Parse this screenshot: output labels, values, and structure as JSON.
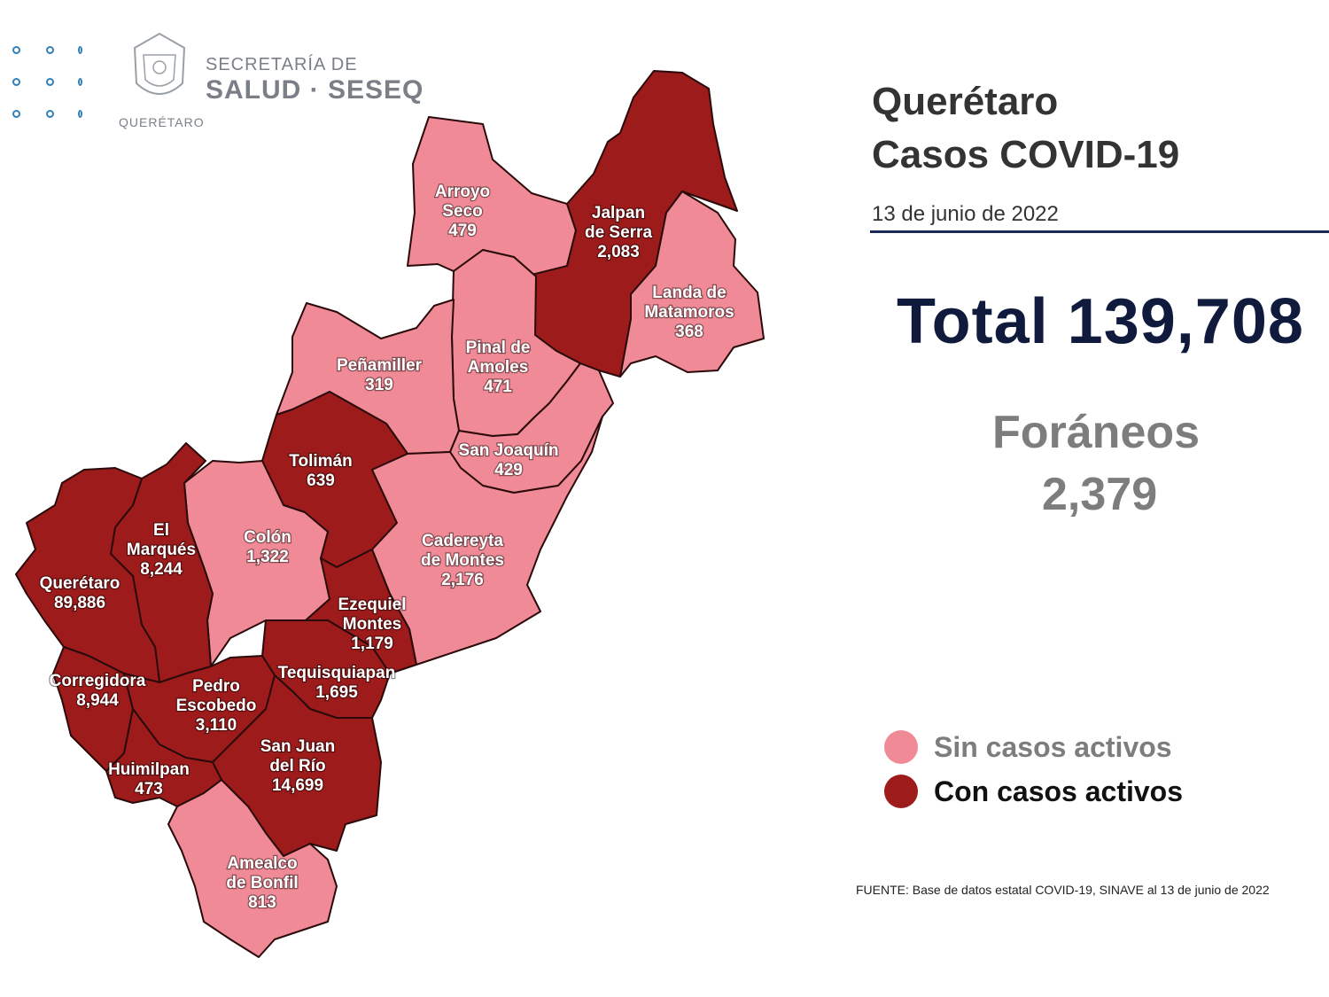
{
  "header": {
    "org_line1": "SECRETARÍA DE",
    "org_line2": "SALUD · SESEQ",
    "org_sub": "QUERÉTARO"
  },
  "title": {
    "line1": "Querétaro",
    "line2": "Casos COVID-19",
    "date": "13 de junio de 2022"
  },
  "total": "Total 139,708",
  "foraneos": {
    "label": "Foráneos",
    "value": "2,379"
  },
  "legend": {
    "inactive": {
      "label": "Sin casos activos",
      "color": "#f08a96",
      "text_color": "#7d7d7d"
    },
    "active": {
      "label": "Con casos activos",
      "color": "#9e1b1b",
      "text_color": "#111111"
    }
  },
  "source": "FUENTE: Base de datos estatal  COVID-19,  SINAVE  al 13 de junio de 2022",
  "municipalities": [
    {
      "id": "arroyo-seco",
      "lines": [
        "Arroyo",
        "Seco",
        "479"
      ],
      "active": false
    },
    {
      "id": "jalpan",
      "lines": [
        "Jalpan",
        "de Serra",
        "2,083"
      ],
      "active": true
    },
    {
      "id": "landa",
      "lines": [
        "Landa de",
        "Matamoros",
        "368"
      ],
      "active": false
    },
    {
      "id": "pinal",
      "lines": [
        "Pinal de",
        "Amoles",
        "471"
      ],
      "active": false
    },
    {
      "id": "penamiller",
      "lines": [
        "Peñamiller",
        "319"
      ],
      "active": false
    },
    {
      "id": "san-joaquin",
      "lines": [
        "San Joaquín",
        "429"
      ],
      "active": false
    },
    {
      "id": "toliman",
      "lines": [
        "Tolimán",
        "639"
      ],
      "active": true
    },
    {
      "id": "cadereyta",
      "lines": [
        "Cadereyta",
        "de Montes",
        "2,176"
      ],
      "active": false
    },
    {
      "id": "colon",
      "lines": [
        "Colón",
        "1,322"
      ],
      "active": false
    },
    {
      "id": "el-marques",
      "lines": [
        "El",
        "Marqués",
        "8,244"
      ],
      "active": true
    },
    {
      "id": "queretaro",
      "lines": [
        "Querétaro",
        "89,886"
      ],
      "active": true
    },
    {
      "id": "ezequiel",
      "lines": [
        "Ezequiel",
        "Montes",
        "1,179"
      ],
      "active": true
    },
    {
      "id": "tequisquiapan",
      "lines": [
        "Tequisquiapan",
        "1,695"
      ],
      "active": true
    },
    {
      "id": "corregidora",
      "lines": [
        "Corregidora",
        "8,944"
      ],
      "active": true
    },
    {
      "id": "pedro-escobedo",
      "lines": [
        "Pedro",
        "Escobedo",
        "3,110"
      ],
      "active": true
    },
    {
      "id": "san-juan",
      "lines": [
        "San Juan",
        "del Río",
        "14,699"
      ],
      "active": true
    },
    {
      "id": "huimilpan",
      "lines": [
        "Huimilpan",
        "473"
      ],
      "active": true
    },
    {
      "id": "amealco",
      "lines": [
        "Amealco",
        "de Bonfil",
        "813"
      ],
      "active": false
    }
  ]
}
